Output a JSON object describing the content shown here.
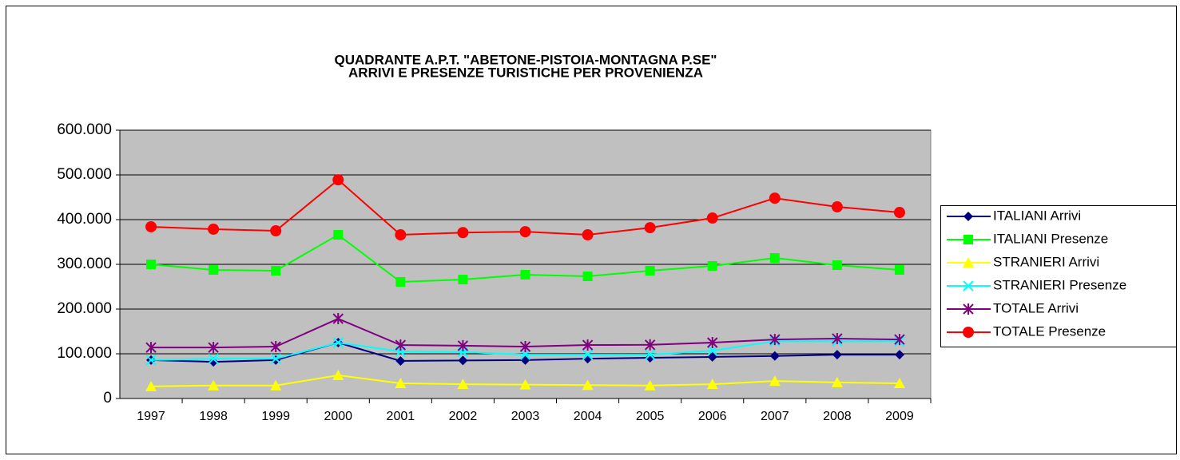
{
  "chart_data": {
    "type": "line",
    "title": [
      "QUADRANTE A.P.T. \"ABETONE-PISTOIA-MONTAGNA P.SE\"",
      "ARRIVI E PRESENZE TURISTICHE PER PROVENIENZA"
    ],
    "categories": [
      "1997",
      "1998",
      "1999",
      "2000",
      "2001",
      "2002",
      "2003",
      "2004",
      "2005",
      "2006",
      "2007",
      "2008",
      "2009"
    ],
    "series": [
      {
        "name": "ITALIANI Arrivi",
        "color": "#000080",
        "marker": "diamond",
        "values": [
          86000,
          82000,
          86000,
          125000,
          84000,
          85000,
          86000,
          89000,
          91000,
          93000,
          95000,
          98000,
          98000
        ]
      },
      {
        "name": "ITALIANI Presenze",
        "color": "#00ff00",
        "marker": "square",
        "values": [
          300000,
          287500,
          285700,
          366000,
          260700,
          266000,
          276800,
          273200,
          285700,
          296400,
          314300,
          298200,
          287500
        ]
      },
      {
        "name": "STRANIERI Arrivi",
        "color": "#ffff00",
        "marker": "triangle",
        "values": [
          27000,
          29000,
          29000,
          52000,
          34000,
          32000,
          31000,
          30000,
          29000,
          32000,
          39000,
          36000,
          34000
        ]
      },
      {
        "name": "STRANIERI Presenze",
        "color": "#00ffff",
        "marker": "x",
        "values": [
          86000,
          89000,
          89000,
          125000,
          105000,
          104000,
          98000,
          98000,
          98000,
          107000,
          128000,
          128000,
          128000
        ]
      },
      {
        "name": "TOTALE Arrivi",
        "color": "#800080",
        "marker": "asterisk",
        "values": [
          114000,
          114000,
          116000,
          178500,
          119600,
          118000,
          116000,
          119600,
          120000,
          125000,
          132000,
          134000,
          132000
        ]
      },
      {
        "name": "TOTALE Presenze",
        "color": "#ff0000",
        "marker": "circle",
        "values": [
          384000,
          378600,
          375000,
          489000,
          366000,
          371000,
          373000,
          366000,
          382000,
          403500,
          448000,
          428500,
          416000
        ]
      }
    ],
    "ylim": [
      0,
      600000
    ],
    "yticks": [
      0,
      {
        "value": 100000,
        "label": "100.000"
      },
      {
        "value": 200000,
        "label": "200.000"
      },
      {
        "value": 300000,
        "label": "300.000"
      },
      {
        "value": 400000,
        "label": "400.000"
      },
      {
        "value": 500000,
        "label": "500.000"
      },
      {
        "value": 600000,
        "label": "600.000"
      }
    ],
    "grid": true,
    "legend": "right"
  }
}
